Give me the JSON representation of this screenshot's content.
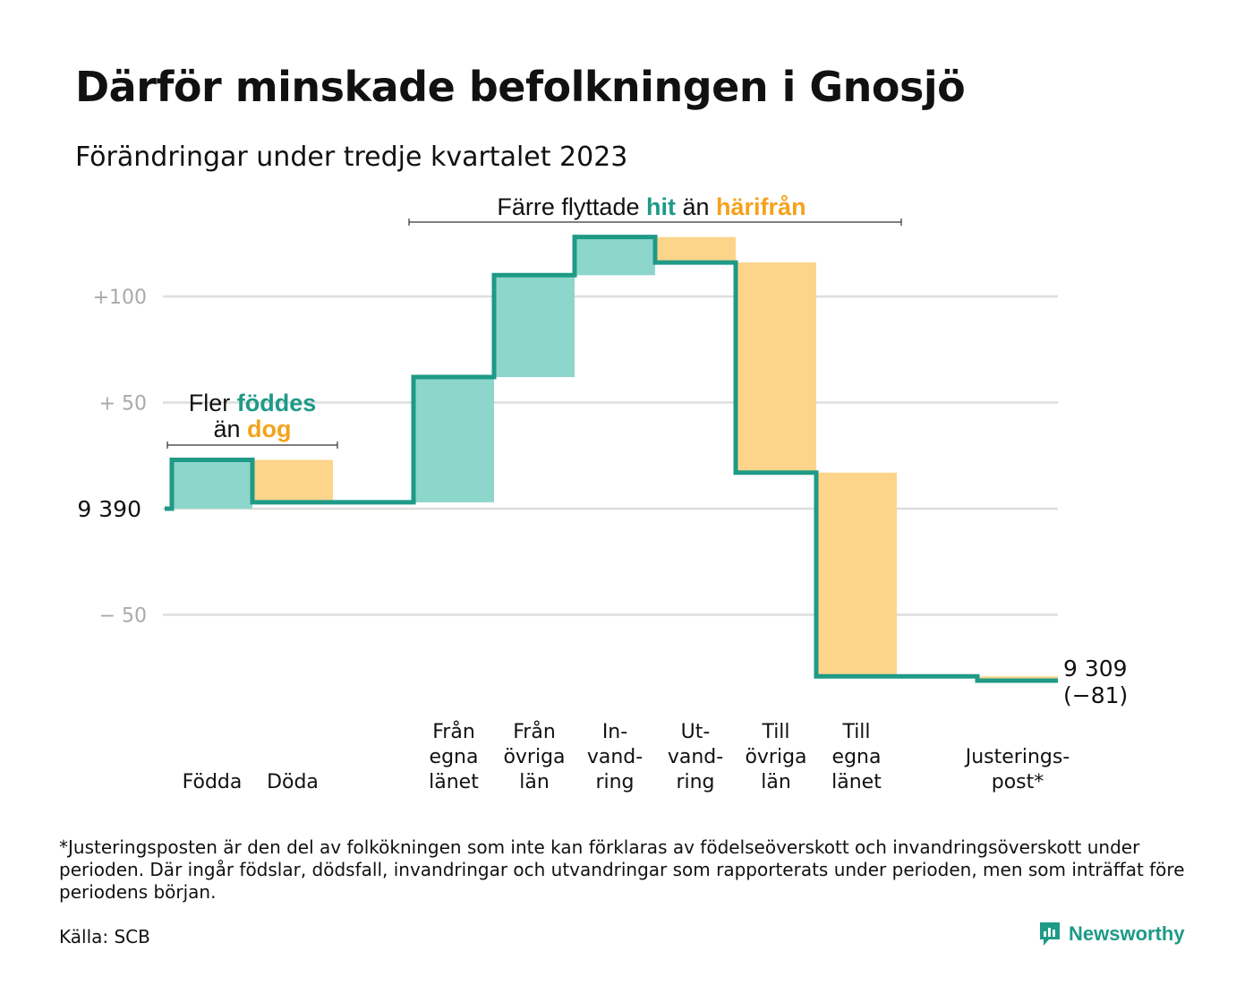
{
  "header": {
    "title": "Därför minskade befolkningen i Gnosjö",
    "subtitle": "Förändringar under tredje kvartalet 2023"
  },
  "colors": {
    "increase": "#8dd6cb",
    "decrease": "#fcd58b",
    "step_line": "#1e9a87",
    "grid": "#dddddd",
    "teal_text": "#1e9a87",
    "orange_text": "#f5a21b"
  },
  "chart_data": {
    "type": "waterfall",
    "start_value": 9390,
    "start_label": "9  390",
    "end_value": 9309,
    "end_label": "9 309",
    "end_change_label": "(−81)",
    "y_ticks": [
      {
        "value": 100,
        "label": "+100"
      },
      {
        "value": 50,
        "label": "+  50"
      },
      {
        "value": 0,
        "label": ""
      },
      {
        "value": -50,
        "label": "−  50"
      }
    ],
    "ylim": [
      -82,
      132
    ],
    "grid": true,
    "steps": [
      {
        "label_lines": [
          "Födda"
        ],
        "value": 23
      },
      {
        "label_lines": [
          "Döda"
        ],
        "value": -20
      },
      {
        "label_lines": [],
        "value": 0
      },
      {
        "label_lines": [
          "Från",
          "egna",
          "länet"
        ],
        "value": 59
      },
      {
        "label_lines": [
          "Från",
          "övriga",
          "län"
        ],
        "value": 48
      },
      {
        "label_lines": [
          "In-",
          "vand-",
          "ring"
        ],
        "value": 18
      },
      {
        "label_lines": [
          "Ut-",
          "vand-",
          "ring"
        ],
        "value": -12
      },
      {
        "label_lines": [
          "Till",
          "övriga",
          "län"
        ],
        "value": -99
      },
      {
        "label_lines": [
          "Till",
          "egna",
          "länet"
        ],
        "value": -96
      },
      {
        "label_lines": [],
        "value": 0
      },
      {
        "label_lines": [
          "Justerings-",
          "post*"
        ],
        "value": -2
      }
    ],
    "annotations": [
      {
        "parts": [
          {
            "text": "Fler ",
            "style": "plain"
          },
          {
            "text": "föddes",
            "style": "teal"
          }
        ]
      },
      {
        "parts": [
          {
            "text": "än ",
            "style": "plain"
          },
          {
            "text": "dog",
            "style": "orange"
          }
        ]
      },
      {
        "parts": [
          {
            "text": "Färre flyttade ",
            "style": "plain"
          },
          {
            "text": "hit",
            "style": "teal"
          },
          {
            "text": " än ",
            "style": "plain"
          },
          {
            "text": "härifrån",
            "style": "orange"
          }
        ]
      }
    ]
  },
  "footer": {
    "footnote": "*Justeringsposten är den del av folkökningen som inte kan förklaras av födelseöverskott och invandringsöverskott under perioden. Där ingår födslar, dödsfall, invandringar och utvandringar som rapporterats under perioden, men som inträffat före periodens början.",
    "source": "Källa: SCB",
    "brand": "Newsworthy",
    "brand_icon": "newsworthy-chart-bubble-icon"
  }
}
